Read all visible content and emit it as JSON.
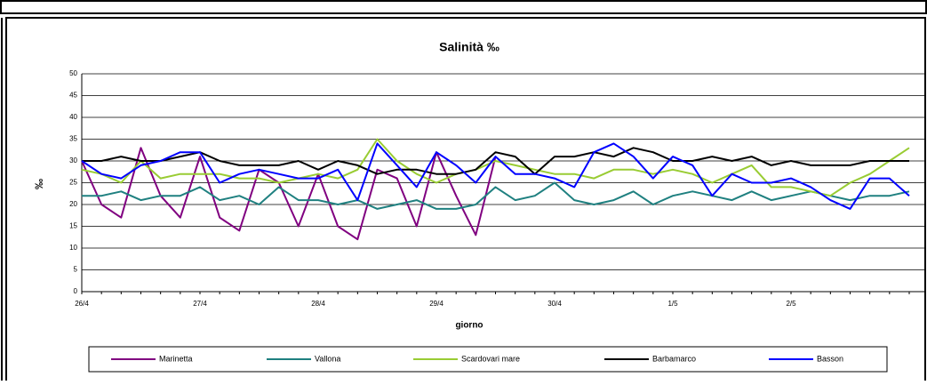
{
  "chart_data": {
    "type": "line",
    "title": "Salinità ‰",
    "xlabel": "giorno",
    "ylabel": "‰",
    "categories": [
      "26/4",
      null,
      null,
      null,
      null,
      null,
      "27/4",
      null,
      null,
      null,
      null,
      null,
      "28/4",
      null,
      null,
      null,
      null,
      null,
      "29/4",
      null,
      null,
      null,
      null,
      null,
      "30/4",
      null,
      null,
      null,
      null,
      null,
      "1/5",
      null,
      null,
      null,
      null,
      null,
      "2/5",
      null,
      null,
      null,
      null,
      null,
      null
    ],
    "ylim": [
      0,
      50
    ],
    "yticks": [
      0,
      5,
      10,
      15,
      20,
      25,
      30,
      35,
      40,
      45,
      50
    ],
    "grid": true,
    "series": [
      {
        "name": "Marinetta",
        "color": "#800080",
        "values": [
          30,
          20,
          17,
          33,
          22,
          17,
          31,
          17,
          14,
          28,
          25,
          15,
          27,
          15,
          12,
          28,
          26,
          15,
          32,
          22,
          13,
          31,
          null,
          null,
          null,
          null,
          null,
          null,
          null,
          null,
          null,
          null,
          null,
          null,
          null,
          null,
          null,
          null,
          null,
          null,
          null,
          null,
          null
        ]
      },
      {
        "name": "Vallona",
        "color": "#1f8080",
        "values": [
          22,
          22,
          23,
          21,
          22,
          22,
          24,
          21,
          22,
          20,
          24,
          21,
          21,
          20,
          21,
          19,
          20,
          21,
          19,
          19,
          20,
          24,
          21,
          22,
          25,
          21,
          20,
          21,
          23,
          20,
          22,
          23,
          22,
          21,
          23,
          21,
          22,
          23,
          22,
          21,
          22,
          22,
          23
        ]
      },
      {
        "name": "Scardovari mare",
        "color": "#99cc33",
        "values": [
          28,
          27,
          25,
          30,
          26,
          27,
          27,
          27,
          26,
          26,
          25,
          26,
          27,
          26,
          28,
          35,
          30,
          27,
          25,
          27,
          28,
          30,
          29,
          28,
          27,
          27,
          26,
          28,
          28,
          27,
          28,
          27,
          25,
          27,
          29,
          24,
          24,
          23,
          22,
          25,
          27,
          30,
          33
        ]
      },
      {
        "name": "Barbamarco",
        "color": "#000000",
        "values": [
          30,
          30,
          31,
          30,
          30,
          31,
          32,
          30,
          29,
          29,
          29,
          30,
          28,
          30,
          29,
          27,
          28,
          28,
          27,
          27,
          28,
          32,
          31,
          27,
          31,
          31,
          32,
          31,
          33,
          32,
          30,
          30,
          31,
          30,
          31,
          29,
          30,
          29,
          29,
          29,
          30,
          30,
          30
        ]
      },
      {
        "name": "Basson",
        "color": "#0000ff",
        "values": [
          30,
          27,
          26,
          29,
          30,
          32,
          32,
          25,
          27,
          28,
          27,
          26,
          26,
          28,
          21,
          34,
          29,
          24,
          32,
          29,
          25,
          31,
          27,
          27,
          26,
          24,
          32,
          34,
          31,
          26,
          31,
          29,
          22,
          27,
          25,
          25,
          26,
          24,
          21,
          19,
          26,
          26,
          22
        ]
      }
    ]
  }
}
